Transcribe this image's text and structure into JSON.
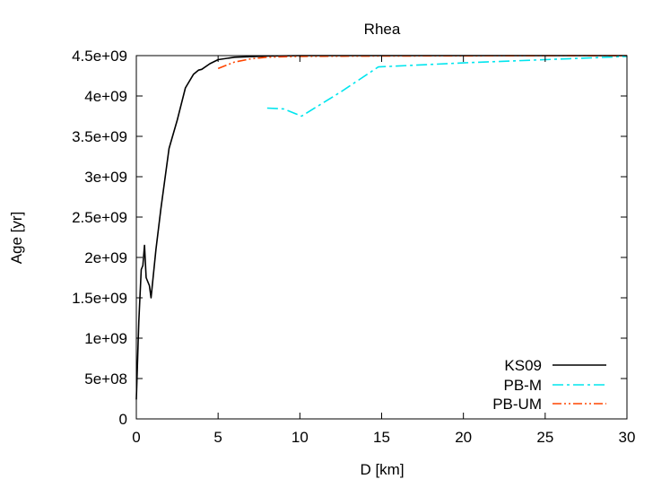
{
  "chart_data": {
    "type": "line",
    "title": "Rhea",
    "xlabel": "D [km]",
    "ylabel": "Age [yr]",
    "xlim": [
      0,
      30
    ],
    "ylim": [
      0,
      4500000000
    ],
    "x_ticks": [
      0,
      5,
      10,
      15,
      20,
      25,
      30
    ],
    "x_tick_labels": [
      "0",
      "5",
      "10",
      "15",
      "20",
      "25",
      "30"
    ],
    "y_ticks": [
      0,
      500000000,
      1000000000,
      1500000000,
      2000000000,
      2500000000,
      3000000000,
      3500000000,
      4000000000,
      4500000000
    ],
    "y_tick_labels": [
      "0",
      "5e+08",
      "1e+09",
      "1.5e+09",
      "2e+09",
      "2.5e+09",
      "3e+09",
      "3.5e+09",
      "4e+09",
      "4.5e+09"
    ],
    "grid": false,
    "legend_position": "bottom-right",
    "series": [
      {
        "name": "KS09",
        "color": "#000000",
        "dash": "solid",
        "points": [
          [
            0.0,
            240000000
          ],
          [
            0.15,
            1200000000
          ],
          [
            0.3,
            1850000000
          ],
          [
            0.4,
            1900000000
          ],
          [
            0.5,
            2150000000
          ],
          [
            0.6,
            1750000000
          ],
          [
            0.8,
            1650000000
          ],
          [
            0.9,
            1500000000
          ],
          [
            1.2,
            2100000000
          ],
          [
            1.5,
            2600000000
          ],
          [
            2.0,
            3350000000
          ],
          [
            2.5,
            3700000000
          ],
          [
            3.0,
            4100000000
          ],
          [
            3.5,
            4270000000
          ],
          [
            3.8,
            4320000000
          ],
          [
            4.0,
            4330000000
          ],
          [
            4.5,
            4400000000
          ],
          [
            5.0,
            4450000000
          ],
          [
            6.0,
            4480000000
          ],
          [
            8.0,
            4495000000
          ],
          [
            10.0,
            4500000000
          ],
          [
            30.0,
            4500000000
          ]
        ]
      },
      {
        "name": "PB-M",
        "color": "#00e5ee",
        "dash": "dashdot",
        "points": [
          [
            8.0,
            3850000000
          ],
          [
            9.0,
            3840000000
          ],
          [
            10.1,
            3750000000
          ],
          [
            12.5,
            4050000000
          ],
          [
            14.8,
            4360000000
          ],
          [
            20.0,
            4410000000
          ],
          [
            25.0,
            4450000000
          ],
          [
            30.0,
            4490000000
          ]
        ]
      },
      {
        "name": "PB-UM",
        "color": "#ff4500",
        "dash": "dashdotdot",
        "points": [
          [
            5.0,
            4340000000
          ],
          [
            5.5,
            4380000000
          ],
          [
            6.0,
            4420000000
          ],
          [
            7.0,
            4460000000
          ],
          [
            8.0,
            4480000000
          ],
          [
            10.0,
            4490000000
          ],
          [
            15.0,
            4495000000
          ],
          [
            30.0,
            4500000000
          ]
        ]
      }
    ]
  }
}
